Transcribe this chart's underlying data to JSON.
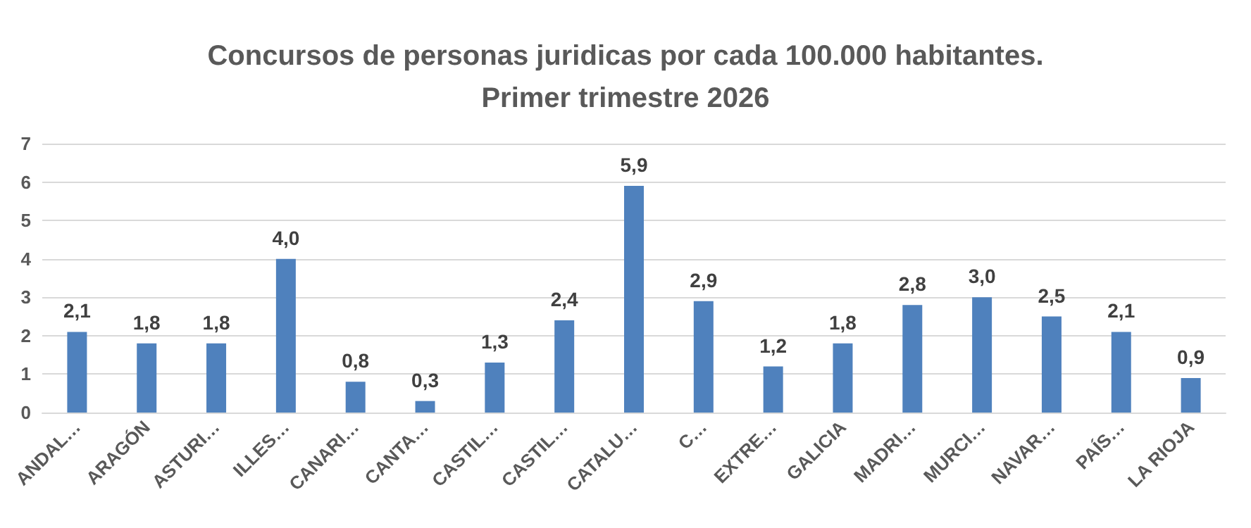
{
  "chart_data": {
    "type": "bar",
    "title": "Concursos de personas juridicas por cada 100.000 habitantes.\nPrimer trimestre 2026",
    "categories": [
      "ANDAL…",
      "ARAGÓN",
      "ASTURI…",
      "ILLES…",
      "CANARI…",
      "CANTA…",
      "CASTIL…",
      "CASTIL…",
      "CATALU…",
      "C…",
      "EXTRE…",
      "GALICIA",
      "MADRI…",
      "MURCI…",
      "NAVAR…",
      "PAÍS…",
      "LA RIOJA"
    ],
    "series": [
      {
        "color": "#4f81bd",
        "values": [
          2.1,
          1.8,
          1.8,
          4.0,
          0.8,
          0.3,
          1.3,
          2.4,
          5.9,
          2.9,
          1.2,
          1.8,
          2.8,
          3.0,
          2.5,
          2.1,
          0.9
        ],
        "value_labels": [
          "2,1",
          "1,8",
          "1,8",
          "4,0",
          "0,8",
          "0,3",
          "1,3",
          "2,4",
          "5,9",
          "2,9",
          "1,2",
          "1,8",
          "2,8",
          "3,0",
          "2,5",
          "2,1",
          "0,9"
        ]
      }
    ],
    "ylim": [
      0,
      7
    ],
    "yticks": [
      0,
      1,
      2,
      3,
      4,
      5,
      6,
      7
    ],
    "grid": "y"
  }
}
